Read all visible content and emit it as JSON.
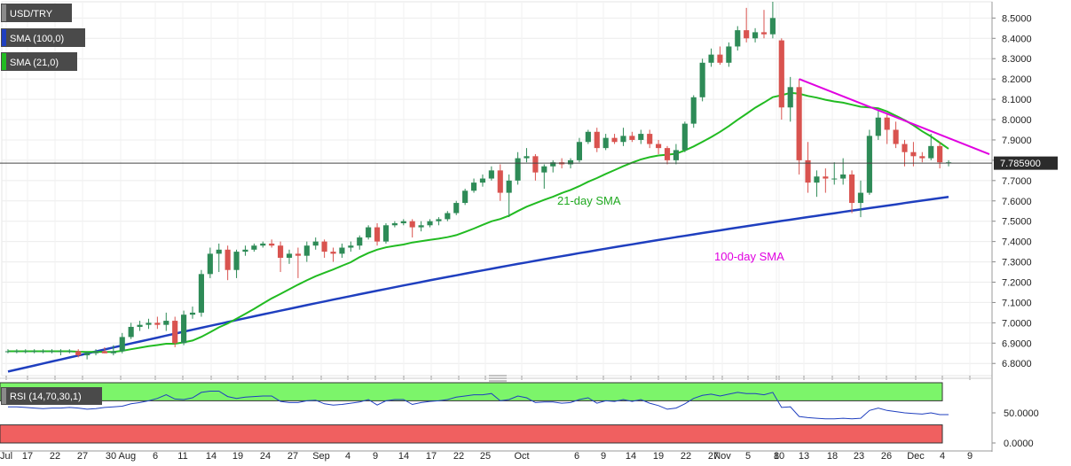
{
  "chart_data": [
    {
      "type": "candlestick",
      "title": "USD/TRY",
      "ylim": [
        6.74,
        8.58
      ],
      "yticks": [
        "8.5000",
        "8.4000",
        "8.3000",
        "8.2000",
        "8.1000",
        "8.0000",
        "7.9000",
        "7.8000",
        "7.7000",
        "7.6000",
        "7.5000",
        "7.4000",
        "7.3000",
        "7.2000",
        "7.1000",
        "7.0000",
        "6.9000",
        "6.8000"
      ],
      "xticks": [
        "Jul",
        "17",
        "22",
        "27",
        "30 Aug",
        "6",
        "11",
        "14",
        "19",
        "24",
        "27",
        "Sep",
        "4",
        "9",
        "14",
        "17",
        "22",
        "25",
        "Oct",
        "6",
        "9",
        "14",
        "19",
        "22",
        "27",
        "Nov",
        "5",
        "8",
        "10",
        "13",
        "18",
        "23",
        "26",
        "Dec",
        "4",
        "9"
      ],
      "last_price": 7.7859,
      "last_price_label": "7.785900",
      "colors": {
        "up": "#2e8b57",
        "down": "#d9534f",
        "sma100": "#1f3fbf",
        "sma21": "#22bb22",
        "trend": "#e000e0"
      },
      "legend": [
        {
          "label": "SMA (100,0)",
          "color": "#1f3fbf"
        },
        {
          "label": "SMA (21,0)",
          "color": "#22bb22"
        }
      ],
      "annotations": [
        {
          "text": "21-day SMA",
          "color": "#22aa22"
        },
        {
          "text": "100-day SMA",
          "color": "#e000e0"
        }
      ],
      "candles": [
        [
          6.86,
          6.87,
          6.85,
          6.86
        ],
        [
          6.86,
          6.87,
          6.85,
          6.86
        ],
        [
          6.86,
          6.87,
          6.85,
          6.86
        ],
        [
          6.86,
          6.87,
          6.85,
          6.86
        ],
        [
          6.86,
          6.87,
          6.85,
          6.86
        ],
        [
          6.86,
          6.87,
          6.85,
          6.86
        ],
        [
          6.86,
          6.87,
          6.84,
          6.86
        ],
        [
          6.86,
          6.87,
          6.85,
          6.86
        ],
        [
          6.86,
          6.87,
          6.83,
          6.84
        ],
        [
          6.84,
          6.86,
          6.82,
          6.85
        ],
        [
          6.85,
          6.87,
          6.84,
          6.86
        ],
        [
          6.86,
          6.88,
          6.85,
          6.85
        ],
        [
          6.85,
          6.89,
          6.84,
          6.86
        ],
        [
          6.86,
          6.95,
          6.85,
          6.93
        ],
        [
          6.93,
          7.0,
          6.92,
          6.98
        ],
        [
          6.98,
          7.01,
          6.96,
          6.99
        ],
        [
          6.99,
          7.02,
          6.97,
          7.0
        ],
        [
          7.0,
          7.03,
          6.97,
          6.99
        ],
        [
          6.99,
          7.05,
          6.96,
          7.01
        ],
        [
          7.01,
          7.03,
          6.88,
          6.9
        ],
        [
          6.9,
          7.06,
          6.89,
          7.04
        ],
        [
          7.04,
          7.08,
          7.02,
          7.05
        ],
        [
          7.05,
          7.26,
          7.03,
          7.24
        ],
        [
          7.24,
          7.37,
          7.22,
          7.34
        ],
        [
          7.34,
          7.39,
          7.25,
          7.36
        ],
        [
          7.36,
          7.38,
          7.21,
          7.26
        ],
        [
          7.26,
          7.36,
          7.22,
          7.35
        ],
        [
          7.35,
          7.38,
          7.33,
          7.36
        ],
        [
          7.36,
          7.39,
          7.35,
          7.38
        ],
        [
          7.38,
          7.4,
          7.37,
          7.39
        ],
        [
          7.39,
          7.41,
          7.37,
          7.38
        ],
        [
          7.38,
          7.4,
          7.25,
          7.32
        ],
        [
          7.32,
          7.36,
          7.29,
          7.34
        ],
        [
          7.34,
          7.37,
          7.22,
          7.33
        ],
        [
          7.33,
          7.4,
          7.3,
          7.38
        ],
        [
          7.38,
          7.42,
          7.36,
          7.4
        ],
        [
          7.4,
          7.41,
          7.32,
          7.35
        ],
        [
          7.35,
          7.37,
          7.3,
          7.34
        ],
        [
          7.34,
          7.39,
          7.32,
          7.37
        ],
        [
          7.37,
          7.4,
          7.35,
          7.38
        ],
        [
          7.38,
          7.43,
          7.36,
          7.42
        ],
        [
          7.42,
          7.48,
          7.41,
          7.47
        ],
        [
          7.47,
          7.49,
          7.38,
          7.4
        ],
        [
          7.4,
          7.49,
          7.39,
          7.48
        ],
        [
          7.48,
          7.5,
          7.47,
          7.49
        ],
        [
          7.49,
          7.51,
          7.48,
          7.5
        ],
        [
          7.5,
          7.51,
          7.42,
          7.47
        ],
        [
          7.47,
          7.5,
          7.45,
          7.48
        ],
        [
          7.48,
          7.51,
          7.47,
          7.5
        ],
        [
          7.5,
          7.52,
          7.48,
          7.51
        ],
        [
          7.51,
          7.55,
          7.5,
          7.54
        ],
        [
          7.54,
          7.6,
          7.53,
          7.59
        ],
        [
          7.59,
          7.66,
          7.58,
          7.65
        ],
        [
          7.65,
          7.71,
          7.64,
          7.69
        ],
        [
          7.69,
          7.73,
          7.67,
          7.71
        ],
        [
          7.71,
          7.77,
          7.7,
          7.75
        ],
        [
          7.75,
          7.78,
          7.6,
          7.64
        ],
        [
          7.64,
          7.73,
          7.52,
          7.7
        ],
        [
          7.7,
          7.84,
          7.68,
          7.81
        ],
        [
          7.81,
          7.86,
          7.79,
          7.82
        ],
        [
          7.82,
          7.83,
          7.7,
          7.74
        ],
        [
          7.74,
          7.78,
          7.66,
          7.77
        ],
        [
          7.77,
          7.8,
          7.74,
          7.79
        ],
        [
          7.79,
          7.81,
          7.76,
          7.78
        ],
        [
          7.78,
          7.81,
          7.76,
          7.8
        ],
        [
          7.8,
          7.91,
          7.79,
          7.89
        ],
        [
          7.89,
          7.95,
          7.88,
          7.94
        ],
        [
          7.94,
          7.96,
          7.84,
          7.86
        ],
        [
          7.86,
          7.93,
          7.85,
          7.91
        ],
        [
          7.91,
          7.93,
          7.88,
          7.89
        ],
        [
          7.89,
          7.96,
          7.87,
          7.92
        ],
        [
          7.92,
          7.94,
          7.89,
          7.9
        ],
        [
          7.9,
          7.95,
          7.88,
          7.93
        ],
        [
          7.93,
          7.95,
          7.86,
          7.88
        ],
        [
          7.88,
          7.9,
          7.83,
          7.86
        ],
        [
          7.86,
          7.87,
          7.78,
          7.8
        ],
        [
          7.8,
          7.88,
          7.78,
          7.85
        ],
        [
          7.85,
          7.99,
          7.84,
          7.98
        ],
        [
          7.98,
          8.12,
          7.96,
          8.11
        ],
        [
          8.11,
          8.3,
          8.09,
          8.28
        ],
        [
          8.28,
          8.35,
          8.26,
          8.32
        ],
        [
          8.32,
          8.36,
          8.27,
          8.28
        ],
        [
          8.28,
          8.38,
          8.26,
          8.36
        ],
        [
          8.36,
          8.46,
          8.34,
          8.44
        ],
        [
          8.44,
          8.55,
          8.38,
          8.4
        ],
        [
          8.4,
          8.45,
          8.38,
          8.43
        ],
        [
          8.43,
          8.54,
          8.4,
          8.42
        ],
        [
          8.42,
          8.58,
          8.4,
          8.5
        ],
        [
          8.39,
          8.4,
          8.0,
          8.06
        ],
        [
          8.06,
          8.21,
          7.99,
          8.16
        ],
        [
          8.16,
          8.2,
          7.73,
          7.8
        ],
        [
          7.8,
          7.89,
          7.64,
          7.69
        ],
        [
          7.69,
          7.75,
          7.62,
          7.72
        ],
        [
          7.72,
          7.76,
          7.64,
          7.71
        ],
        [
          7.71,
          7.79,
          7.68,
          7.71
        ],
        [
          7.71,
          7.81,
          7.68,
          7.73
        ],
        [
          7.73,
          7.75,
          7.54,
          7.59
        ],
        [
          7.59,
          7.7,
          7.52,
          7.64
        ],
        [
          7.64,
          7.95,
          7.63,
          7.92
        ],
        [
          7.92,
          8.05,
          7.9,
          8.01
        ],
        [
          8.01,
          8.03,
          7.88,
          7.95
        ],
        [
          7.95,
          7.99,
          7.86,
          7.88
        ],
        [
          7.88,
          7.9,
          7.77,
          7.84
        ],
        [
          7.84,
          7.89,
          7.77,
          7.82
        ],
        [
          7.82,
          7.84,
          7.79,
          7.81
        ],
        [
          7.81,
          7.93,
          7.8,
          7.87
        ],
        [
          7.87,
          7.89,
          7.76,
          7.79
        ],
        [
          7.79,
          7.8,
          7.77,
          7.79
        ]
      ]
    },
    {
      "type": "line",
      "title": "RSI (14,70,30,1)",
      "ylim": [
        0,
        100
      ],
      "yticks": [
        "50.0000",
        "0.0000"
      ],
      "bands": {
        "overbought": 70,
        "oversold": 30
      },
      "colors": {
        "line": "#1f3fbf",
        "upper_band": "#7cf56a",
        "lower_band": "#f06060"
      },
      "rsi": [
        60,
        60,
        59,
        58,
        57,
        58,
        58,
        59,
        58,
        56,
        57,
        59,
        60,
        61,
        65,
        67,
        70,
        74,
        80,
        73,
        72,
        75,
        84,
        86,
        86,
        77,
        74,
        76,
        77,
        78,
        78,
        69,
        67,
        67,
        70,
        71,
        65,
        63,
        64,
        66,
        68,
        72,
        63,
        70,
        72,
        72,
        64,
        67,
        69,
        70,
        72,
        76,
        78,
        80,
        80,
        82,
        70,
        72,
        78,
        75,
        67,
        68,
        68,
        66,
        67,
        72,
        75,
        66,
        70,
        69,
        72,
        69,
        72,
        66,
        62,
        56,
        58,
        65,
        74,
        79,
        81,
        78,
        81,
        84,
        82,
        82,
        80,
        84,
        59,
        60,
        44,
        42,
        41,
        40,
        40,
        41,
        40,
        41,
        54,
        58,
        54,
        52,
        50,
        49,
        48,
        50,
        47,
        47
      ]
    }
  ]
}
